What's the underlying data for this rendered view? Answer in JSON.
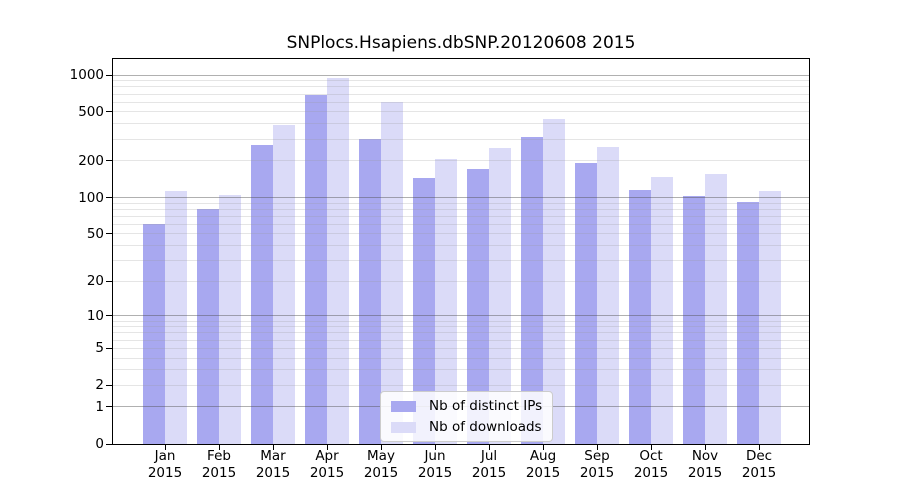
{
  "title": "SNPlocs.Hsapiens.dbSNP.20120608 2015",
  "chart_data": {
    "type": "bar",
    "title": "SNPlocs.Hsapiens.dbSNP.20120608 2015",
    "categories": [
      "Jan 2015",
      "Feb 2015",
      "Mar 2015",
      "Apr 2015",
      "May 2015",
      "Jun 2015",
      "Jul 2015",
      "Aug 2015",
      "Sep 2015",
      "Oct 2015",
      "Nov 2015",
      "Dec 2015"
    ],
    "series": [
      {
        "name": "Nb of distinct IPs",
        "color": "#a8a8f0",
        "values": [
          60,
          80,
          267,
          690,
          300,
          144,
          170,
          310,
          190,
          116,
          103,
          92
        ]
      },
      {
        "name": "Nb of downloads",
        "color": "#dbdbf8",
        "values": [
          113,
          105,
          388,
          950,
          600,
          206,
          253,
          440,
          260,
          146,
          157,
          114
        ]
      }
    ],
    "yscale": "log1p",
    "ylim": [
      0,
      1000
    ],
    "yticks": [
      0,
      1,
      2,
      5,
      10,
      20,
      50,
      100,
      200,
      500,
      1000
    ],
    "xlabel": "",
    "ylabel": "",
    "grid": "horizontal log major+minor",
    "legend_position": "inside bottom-center"
  },
  "x_axis": {
    "months": [
      "Jan",
      "Feb",
      "Mar",
      "Apr",
      "May",
      "Jun",
      "Jul",
      "Aug",
      "Sep",
      "Oct",
      "Nov",
      "Dec"
    ],
    "year": "2015"
  },
  "colors": {
    "axis": "#000000",
    "text": "#000000",
    "grid_major": "rgba(80,80,80,0.45)",
    "grid_minor": "rgba(150,150,150,0.25)",
    "legend_border": "#cccccc",
    "legend_bg": "rgba(255,255,255,0.85)"
  }
}
